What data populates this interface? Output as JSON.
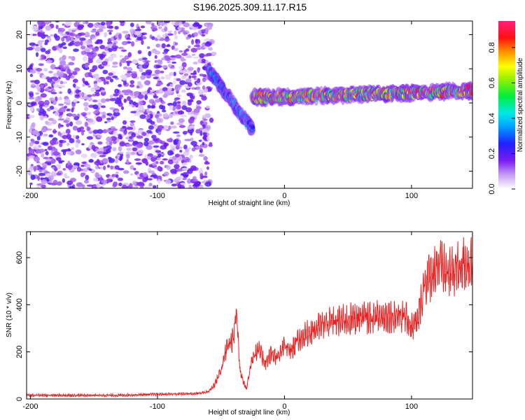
{
  "title": "S196.2025.309.11.17.R15",
  "colors": {
    "snr_line": "#e82020",
    "spec_low": "#7a3cf0",
    "spec_mid": "#00d8ff",
    "spec_high": "#e80020"
  },
  "chart_data": [
    {
      "type": "heatmap",
      "name": "spectrogram",
      "xlabel": "Height of straight line (km)",
      "ylabel": "Frequency (Hz)",
      "xlim": [
        -203,
        148
      ],
      "ylim": [
        -25,
        24
      ],
      "xticks": [
        -200,
        -100,
        0,
        100
      ],
      "yticks": [
        -20,
        -10,
        0,
        10,
        20
      ],
      "colorbar": {
        "label": "Normalized spectral amplitude",
        "range": [
          0,
          0.95
        ],
        "ticks": [
          0.0,
          0.2,
          0.4,
          0.6,
          0.8
        ]
      },
      "regions": [
        {
          "description": "broadband noise",
          "x_range": [
            -203,
            -60
          ],
          "freq_range": [
            -25,
            24
          ],
          "amplitude": 0.15
        },
        {
          "description": "tone sweep",
          "x_range": [
            -60,
            -25
          ],
          "freq_start": 10,
          "freq_end": -8,
          "amplitude": 0.4
        },
        {
          "description": "steady tone",
          "x_range": [
            -25,
            148
          ],
          "freq_start": 1.5,
          "freq_end": 3.5,
          "amplitude": 0.9
        }
      ]
    },
    {
      "type": "line",
      "name": "snr",
      "xlabel": "Height of straight line (km)",
      "ylabel": "SNR (10 * v/v)",
      "xlim": [
        -203,
        148
      ],
      "ylim": [
        0,
        710
      ],
      "xticks": [
        -200,
        -100,
        0,
        100
      ],
      "yticks": [
        0,
        200,
        400,
        600
      ],
      "series": [
        {
          "name": "SNR",
          "x": [
            -203,
            -190,
            -170,
            -150,
            -130,
            -110,
            -90,
            -70,
            -60,
            -55,
            -50,
            -45,
            -40,
            -38,
            -35,
            -30,
            -25,
            -20,
            -15,
            -10,
            -5,
            0,
            5,
            10,
            15,
            20,
            25,
            30,
            40,
            50,
            60,
            70,
            80,
            90,
            95,
            100,
            105,
            110,
            115,
            120,
            130,
            140,
            148
          ],
          "y": [
            15,
            15,
            15,
            15,
            15,
            18,
            20,
            22,
            30,
            60,
            120,
            220,
            250,
            380,
            120,
            40,
            180,
            200,
            150,
            190,
            170,
            220,
            200,
            240,
            260,
            280,
            290,
            310,
            320,
            330,
            340,
            340,
            345,
            350,
            340,
            300,
            320,
            480,
            510,
            560,
            520,
            560,
            570
          ]
        }
      ]
    }
  ]
}
